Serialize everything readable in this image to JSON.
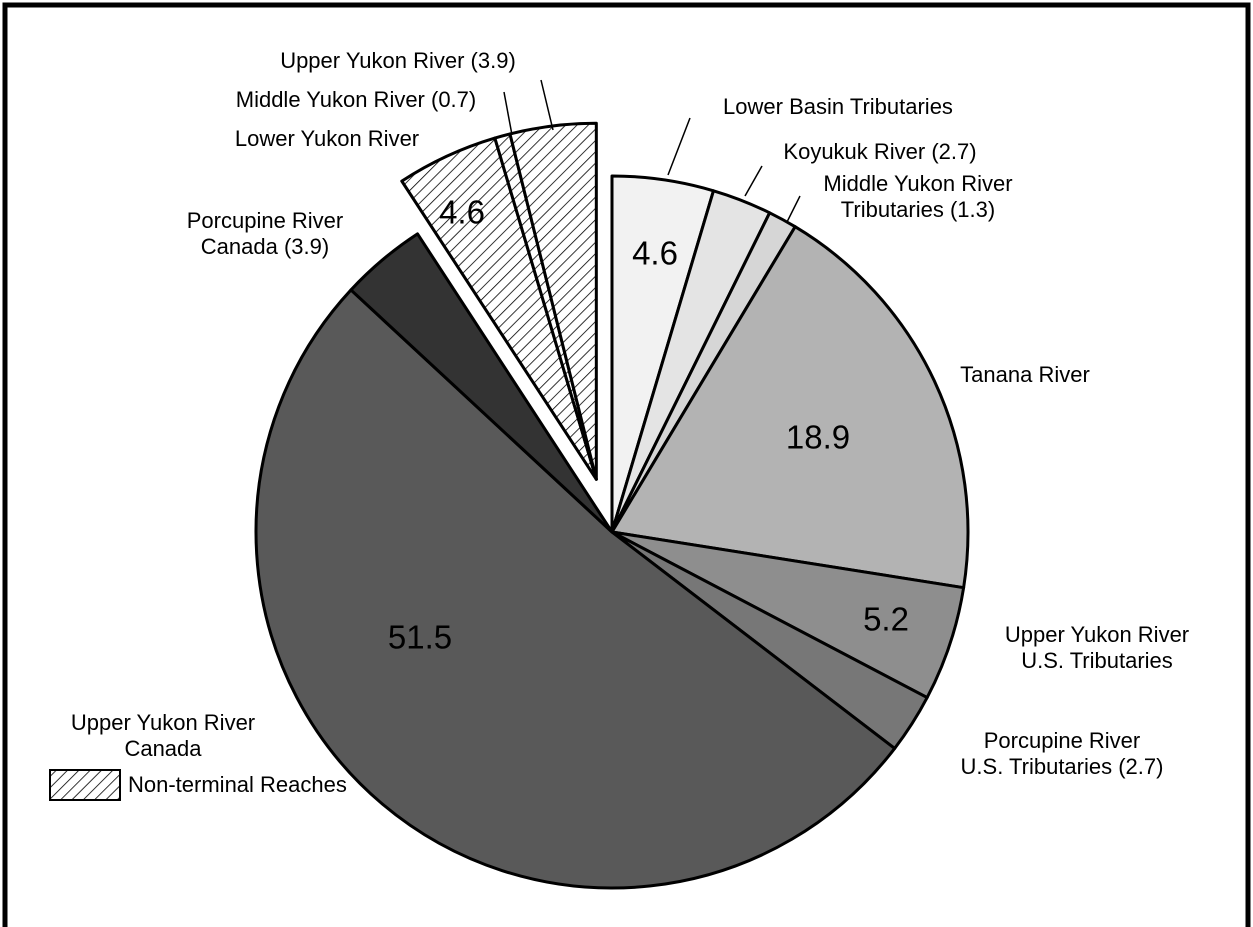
{
  "chart_data": {
    "type": "pie",
    "categories": [
      [
        "Lower Basin Tributaries"
      ],
      [
        "Koyukuk River (2.7)"
      ],
      [
        "Middle Yukon River",
        "Tributaries (1.3)"
      ],
      [
        "Tanana River"
      ],
      [
        "Upper Yukon River",
        "U.S. Tributaries"
      ],
      [
        "Porcupine River",
        "U.S. Tributaries (2.7)"
      ],
      [
        "Upper Yukon River",
        "Canada"
      ],
      [
        "Porcupine River",
        "Canada (3.9)"
      ],
      [
        "Lower Yukon River"
      ],
      [
        "Middle Yukon River (0.7)"
      ],
      [
        "Upper Yukon River (3.9)"
      ]
    ],
    "values": [
      4.6,
      2.7,
      1.3,
      18.9,
      5.2,
      2.7,
      51.5,
      3.9,
      4.6,
      0.7,
      3.9
    ],
    "value_labels": [
      "4.6",
      null,
      null,
      "18.9",
      "5.2",
      null,
      "51.5",
      null,
      "4.6",
      null,
      null
    ],
    "colors": [
      "#f2f2f2",
      "#e4e4e4",
      "#d6d6d6",
      "#b3b3b3",
      "#8e8e8e",
      "#777777",
      "#595959",
      "#333333",
      "#ffffff",
      "#ffffff",
      "#ffffff"
    ],
    "exploded": [
      false,
      false,
      false,
      false,
      false,
      false,
      false,
      false,
      true,
      true,
      true
    ],
    "legend": {
      "label": "Non-terminal Reaches",
      "position": "lower left"
    }
  }
}
